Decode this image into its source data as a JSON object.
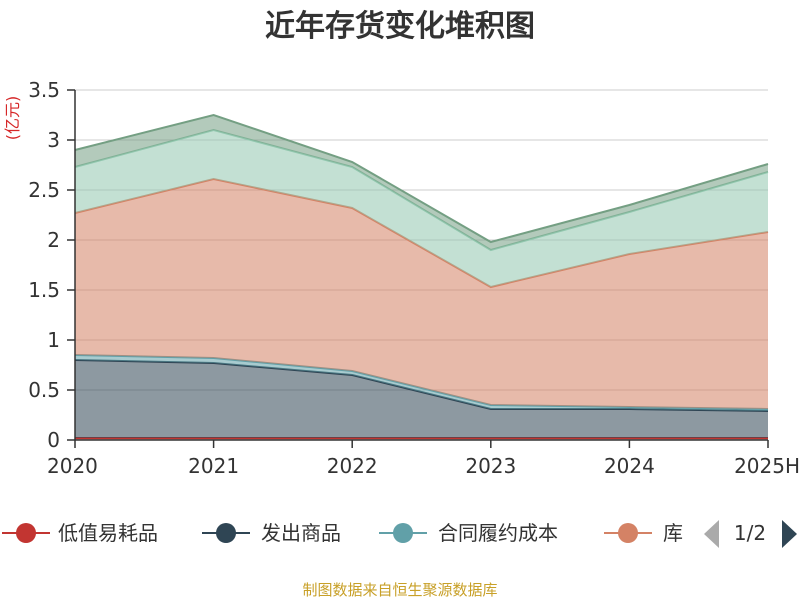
{
  "chart_data": {
    "type": "area",
    "stacked": true,
    "title": "近年存货变化堆积图",
    "unit": "(亿元)",
    "categories": [
      "2020",
      "2021",
      "2022",
      "2023",
      "2024",
      "2025H"
    ],
    "ylim": [
      0,
      3.5
    ],
    "yticks": [
      "0",
      "0.5",
      "1",
      "1.5",
      "2",
      "2.5",
      "3",
      "3.5"
    ],
    "grid": true,
    "series": [
      {
        "name": "低值易耗品",
        "color": "#c23531",
        "values": [
          0.02,
          0.02,
          0.02,
          0.02,
          0.02,
          0.02
        ]
      },
      {
        "name": "发出商品",
        "color": "#2f4554",
        "values": [
          0.78,
          0.75,
          0.63,
          0.29,
          0.29,
          0.27
        ]
      },
      {
        "name": "合同履约成本",
        "color": "#61a0a8",
        "values": [
          0.05,
          0.05,
          0.04,
          0.04,
          0.02,
          0.02
        ]
      },
      {
        "name": "库存商品",
        "color": "#d48265",
        "values": [
          1.42,
          1.79,
          1.63,
          1.18,
          1.53,
          1.77
        ]
      },
      {
        "name": "",
        "color": "#91c7ae",
        "values": [
          0.46,
          0.49,
          0.41,
          0.37,
          0.42,
          0.6
        ]
      },
      {
        "name": "",
        "color": "#749f83",
        "values": [
          0.17,
          0.15,
          0.05,
          0.08,
          0.07,
          0.08
        ]
      }
    ],
    "legend": {
      "position": "bottom",
      "visible_items": [
        "低值易耗品",
        "发出商品",
        "合同履约成本",
        "库"
      ],
      "page": "1/2"
    }
  },
  "source_note": "制图数据来自恒生聚源数据库"
}
